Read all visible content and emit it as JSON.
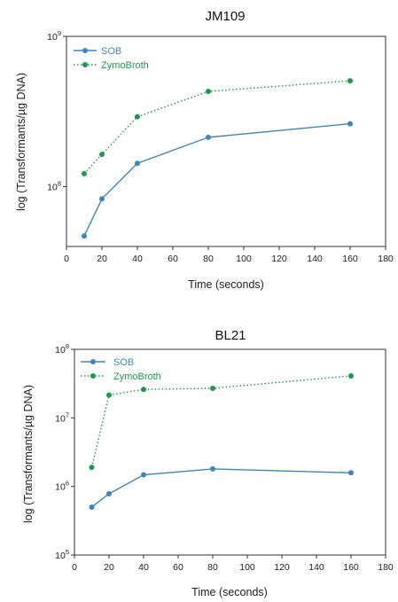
{
  "colors": {
    "sob": "#3f86b8",
    "zymobroth": "#1c9a4c"
  },
  "chart_data": [
    {
      "type": "line",
      "title": "JM109",
      "xlabel": "Time (seconds)",
      "ylabel": "log (Transformants/µg DNA)",
      "xlim": [
        0,
        180
      ],
      "xticks": [
        "0",
        "20",
        "40",
        "60",
        "80",
        "100",
        "120",
        "140",
        "160",
        "180"
      ],
      "y_scale": "log",
      "ylim": [
        40000000,
        1000000000
      ],
      "yticks": [
        {
          "base": "10",
          "exp": "8",
          "value": 100000000
        },
        {
          "base": "10",
          "exp": "9",
          "value": 1000000000
        }
      ],
      "grid": false,
      "legend": "top-left",
      "series": [
        {
          "name": "SOB",
          "color": "#3f86b8",
          "style": "solid",
          "x": [
            10,
            20,
            40,
            80,
            160
          ],
          "y": [
            47000000,
            83000000,
            143000000,
            213000000,
            262000000
          ]
        },
        {
          "name": "ZymoBroth",
          "color": "#1c9a4c",
          "style": "dotted",
          "x": [
            10,
            20,
            40,
            80,
            160
          ],
          "y": [
            122000000,
            164000000,
            292000000,
            430000000,
            506000000
          ]
        }
      ]
    },
    {
      "type": "line",
      "title": "BL21",
      "xlabel": "Time (seconds)",
      "ylabel": "log (Transformants/µg DNA)",
      "xlim": [
        0,
        180
      ],
      "xticks": [
        "0",
        "20",
        "40",
        "60",
        "80",
        "100",
        "120",
        "140",
        "160",
        "180"
      ],
      "y_scale": "log",
      "ylim": [
        100000,
        100000000
      ],
      "yticks": [
        {
          "base": "10",
          "exp": "5",
          "value": 100000
        },
        {
          "base": "10",
          "exp": "6",
          "value": 1000000
        },
        {
          "base": "10",
          "exp": "7",
          "value": 10000000
        },
        {
          "base": "10",
          "exp": "8",
          "value": 100000000
        }
      ],
      "grid": false,
      "legend": "top-left",
      "series": [
        {
          "name": "SOB",
          "color": "#3f86b8",
          "style": "solid",
          "x": [
            10,
            20,
            40,
            80,
            160
          ],
          "y": [
            500000,
            780000,
            1480000,
            1800000,
            1580000
          ]
        },
        {
          "name": "ZymoBroth",
          "color": "#1c9a4c",
          "style": "dotted",
          "x": [
            10,
            20,
            40,
            80,
            160
          ],
          "y": [
            1900000,
            21500000,
            26000000,
            27000000,
            41000000
          ]
        }
      ]
    }
  ]
}
